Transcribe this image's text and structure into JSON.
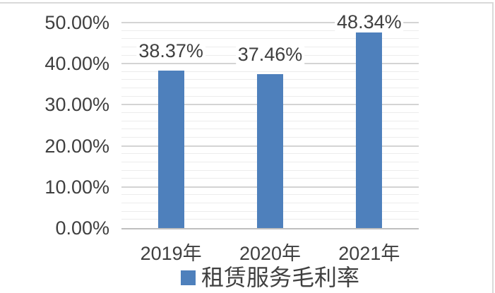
{
  "chart_data": {
    "type": "bar",
    "title": "",
    "categories": [
      "2019年",
      "2020年",
      "2021年"
    ],
    "series": [
      {
        "name": "租赁服务毛利率",
        "values": [
          38.37,
          37.46,
          48.34
        ],
        "color": "#4E80BC"
      }
    ],
    "data_labels": [
      "38.37%",
      "37.46%",
      "48.34%"
    ],
    "y_axis": {
      "tick_labels": [
        "50.00%",
        "40.00%",
        "30.00%",
        "20.00%",
        "10.00%",
        "0.00%"
      ],
      "min": 0,
      "max": 50,
      "major_unit": 10,
      "minor_unit": 2
    },
    "grid": {
      "horizontal_major": true,
      "horizontal_minor": true,
      "vertical": false
    },
    "legend": {
      "position": "bottom",
      "entries": [
        {
          "label": "租赁服务毛利率",
          "marker": "square",
          "color": "#4E80BC"
        }
      ]
    }
  },
  "colors": {
    "bar": "#4E80BC",
    "text": "#3F3F3F",
    "major_gridline": "#D4D4D4",
    "minor_gridline": "#ECECEC",
    "axis_line": "#BFBFBF",
    "chart_border": "#D9D9D9",
    "background": "#FFFFFF",
    "data_label_background": "#FFFFFF"
  }
}
